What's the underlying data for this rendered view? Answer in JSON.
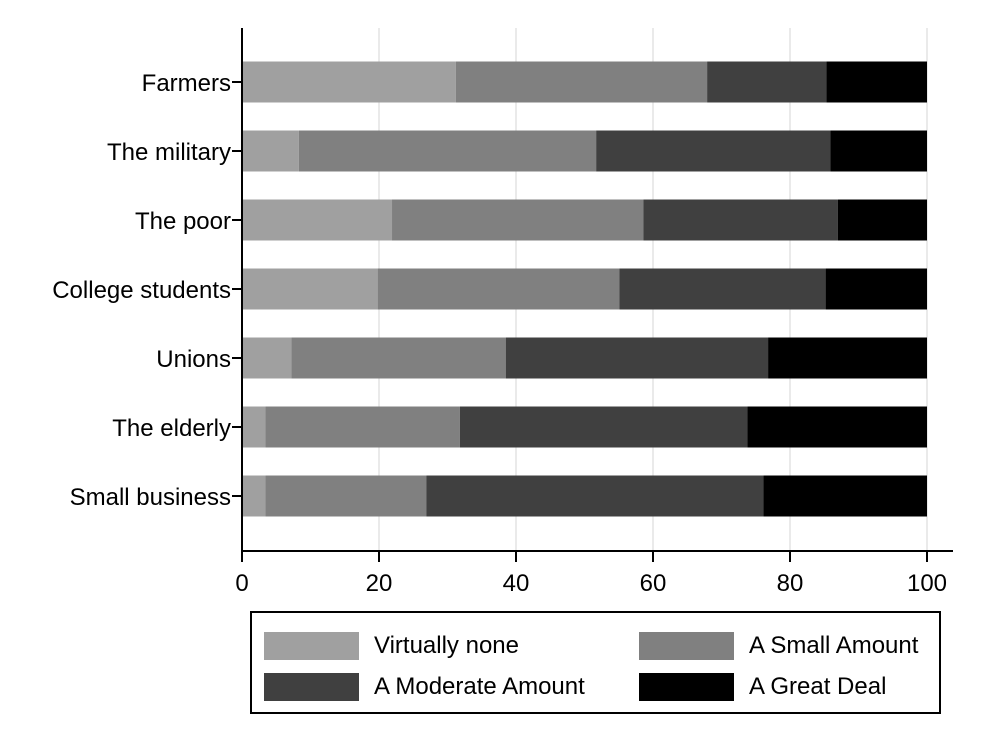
{
  "chart_data": {
    "type": "bar",
    "orientation": "horizontal",
    "stacked": true,
    "categories": [
      "Farmers",
      "The military",
      "The poor",
      "College students",
      "Unions",
      "The elderly",
      "Small business"
    ],
    "series": [
      {
        "name": "Virtually none",
        "color": "#a0a0a0",
        "values": [
          31.2,
          8.3,
          21.9,
          19.8,
          7.2,
          3.4,
          3.4
        ]
      },
      {
        "name": "A Small Amount",
        "color": "#808080",
        "values": [
          36.7,
          43.4,
          36.7,
          35.3,
          31.3,
          28.4,
          23.5
        ]
      },
      {
        "name": "A Moderate Amount",
        "color": "#404040",
        "values": [
          17.4,
          34.2,
          28.4,
          30.1,
          38.3,
          42.0,
          49.2
        ]
      },
      {
        "name": "A Great Deal",
        "color": "#000000",
        "values": [
          14.7,
          14.1,
          13.0,
          14.8,
          23.2,
          26.2,
          23.9
        ]
      }
    ],
    "xlim": [
      0,
      100
    ],
    "xticks": [
      0,
      20,
      40,
      60,
      80,
      100
    ],
    "grid": true,
    "legend_position": "bottom"
  }
}
